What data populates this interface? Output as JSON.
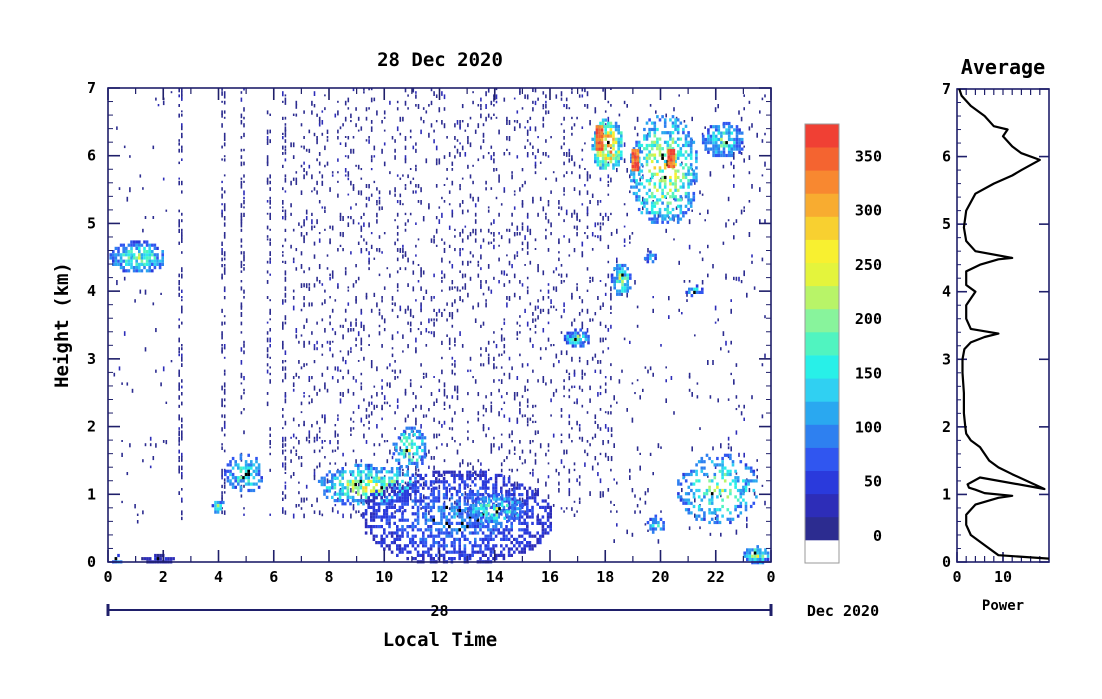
{
  "chart_data": [
    {
      "type": "heatmap",
      "title": "28 Dec 2020",
      "xlabel": "Local Time",
      "ylabel": "Height (km)",
      "xlim": [
        0,
        24
      ],
      "ylim": [
        0,
        7
      ],
      "x_ticks": [
        "0",
        "2",
        "4",
        "6",
        "8",
        "10",
        "12",
        "14",
        "16",
        "18",
        "20",
        "22",
        "0"
      ],
      "y_ticks": [
        "0",
        "1",
        "2",
        "3",
        "4",
        "5",
        "6",
        "7"
      ],
      "date_axis": {
        "day_label": "28",
        "month_label": "Dec 2020"
      },
      "colorbar": {
        "ticks": [
          "0",
          "50",
          "100",
          "150",
          "200",
          "250",
          "300",
          "350"
        ],
        "tick_values": [
          0,
          50,
          100,
          150,
          200,
          250,
          300,
          350
        ],
        "range": [
          -25,
          380
        ],
        "colors": [
          "#ffffff",
          "#2c2c90",
          "#2d2db8",
          "#2a3adc",
          "#3056f0",
          "#2e80f0",
          "#2aa8f0",
          "#30d0f2",
          "#28f0e8",
          "#50f4c0",
          "#88f49c",
          "#b8f468",
          "#e4f43c",
          "#f8f030",
          "#f8d030",
          "#f8ac30",
          "#f88830",
          "#f46430",
          "#f04034"
        ]
      },
      "layers": [
        {
          "kind": "noise",
          "t": [
            6.6,
            18.2
          ],
          "h": [
            0.7,
            7.0
          ],
          "density": 0.11
        },
        {
          "kind": "noise",
          "t": [
            0.2,
            2.3
          ],
          "h": [
            0.6,
            7.0
          ],
          "density": 0.015
        },
        {
          "kind": "noise",
          "t": [
            18.2,
            23.8
          ],
          "h": [
            0.3,
            7.0
          ],
          "density": 0.03
        },
        {
          "kind": "column",
          "t": [
            2.55,
            2.7
          ],
          "h": [
            0.6,
            7.0
          ],
          "density": 0.35
        },
        {
          "kind": "column",
          "t": [
            4.1,
            4.25
          ],
          "h": [
            0.7,
            7.0
          ],
          "density": 0.3
        },
        {
          "kind": "column",
          "t": [
            4.8,
            4.95
          ],
          "h": [
            0.7,
            7.0
          ],
          "density": 0.3
        },
        {
          "kind": "column",
          "t": [
            5.75,
            5.85
          ],
          "h": [
            0.7,
            7.0
          ],
          "density": 0.25
        },
        {
          "kind": "column",
          "t": [
            6.3,
            6.45
          ],
          "h": [
            0.7,
            7.0
          ],
          "density": 0.35
        },
        {
          "kind": "band",
          "t": [
            0.05,
            2.05
          ],
          "h": [
            4.3,
            4.75
          ],
          "v": 180,
          "density": 0.75
        },
        {
          "kind": "band",
          "t": [
            0.05,
            0.5
          ],
          "h": [
            0.0,
            0.12
          ],
          "v": 120,
          "density": 0.6
        },
        {
          "kind": "band",
          "t": [
            1.2,
            2.4
          ],
          "h": [
            0.0,
            0.12
          ],
          "v": 40,
          "density": 0.9
        },
        {
          "kind": "band",
          "t": [
            3.75,
            4.15
          ],
          "h": [
            0.75,
            0.95
          ],
          "v": 160,
          "density": 0.75
        },
        {
          "kind": "band",
          "t": [
            4.2,
            5.6
          ],
          "h": [
            1.05,
            1.6
          ],
          "v": 170,
          "density": 0.5
        },
        {
          "kind": "band",
          "t": [
            7.6,
            11.2
          ],
          "h": [
            0.85,
            1.45
          ],
          "v": 210,
          "density": 0.6
        },
        {
          "kind": "band",
          "t": [
            10.3,
            11.5
          ],
          "h": [
            1.4,
            2.0
          ],
          "v": 200,
          "density": 0.5
        },
        {
          "kind": "band",
          "t": [
            9.2,
            16.0
          ],
          "h": [
            0.0,
            1.35
          ],
          "v": 90,
          "density": 0.5
        },
        {
          "kind": "band",
          "t": [
            12.9,
            15.0
          ],
          "h": [
            0.6,
            1.0
          ],
          "v": 190,
          "density": 0.6
        },
        {
          "kind": "band",
          "t": [
            16.5,
            17.4
          ],
          "h": [
            3.2,
            3.45
          ],
          "v": 170,
          "density": 0.8
        },
        {
          "kind": "band",
          "t": [
            17.5,
            18.6
          ],
          "h": [
            5.8,
            6.55
          ],
          "v": 300,
          "density": 0.75
        },
        {
          "kind": "band",
          "t": [
            18.2,
            18.9
          ],
          "h": [
            3.95,
            4.45
          ],
          "v": 190,
          "density": 0.75
        },
        {
          "kind": "band",
          "t": [
            18.9,
            21.3
          ],
          "h": [
            5.0,
            6.6
          ],
          "v": 230,
          "density": 0.5
        },
        {
          "kind": "band",
          "t": [
            19.4,
            19.8
          ],
          "h": [
            4.45,
            4.6
          ],
          "v": 160,
          "density": 0.85
        },
        {
          "kind": "band",
          "t": [
            20.9,
            21.5
          ],
          "h": [
            3.95,
            4.1
          ],
          "v": 140,
          "density": 0.7
        },
        {
          "kind": "band",
          "t": [
            21.5,
            23.0
          ],
          "h": [
            6.0,
            6.5
          ],
          "v": 170,
          "density": 0.7
        },
        {
          "kind": "band",
          "t": [
            19.5,
            20.1
          ],
          "h": [
            0.45,
            0.7
          ],
          "v": 150,
          "density": 0.7
        },
        {
          "kind": "band",
          "t": [
            20.6,
            23.5
          ],
          "h": [
            0.6,
            1.6
          ],
          "v": 190,
          "density": 0.35
        },
        {
          "kind": "band",
          "t": [
            23.0,
            23.9
          ],
          "h": [
            0.0,
            0.25
          ],
          "v": 200,
          "density": 0.85
        },
        {
          "kind": "spot",
          "t": [
            18.95,
            19.15
          ],
          "h": [
            5.8,
            6.1
          ],
          "v": 360
        },
        {
          "kind": "spot",
          "t": [
            20.25,
            20.45
          ],
          "h": [
            5.85,
            6.1
          ],
          "v": 365
        },
        {
          "kind": "spot",
          "t": [
            17.65,
            17.9
          ],
          "h": [
            6.1,
            6.45
          ],
          "v": 360
        }
      ]
    },
    {
      "type": "line",
      "title": "Average",
      "xlabel": "Power",
      "ylabel": "",
      "xlim": [
        0,
        20
      ],
      "ylim": [
        0,
        7
      ],
      "x_ticks": [
        "0",
        "10"
      ],
      "y_ticks": [
        "0",
        "1",
        "2",
        "3",
        "4",
        "5",
        "6",
        "7"
      ],
      "series": [
        {
          "x": [
            20,
            9,
            6,
            3,
            2,
            2,
            4,
            9,
            12,
            6,
            4,
            2.6,
            2.3,
            5,
            19,
            12,
            9,
            7,
            6,
            5,
            3,
            2,
            1.8,
            1.5,
            1.5,
            1.2,
            1.2,
            1.6,
            3,
            6,
            9,
            3,
            2,
            2,
            3,
            4,
            2,
            2,
            5,
            9,
            12,
            4,
            2,
            1.5,
            2,
            4,
            8,
            12,
            14,
            18,
            14,
            12,
            10,
            11,
            8,
            6,
            3,
            1,
            0.5
          ],
          "y": [
            0.05,
            0.1,
            0.25,
            0.4,
            0.55,
            0.7,
            0.85,
            0.95,
            0.98,
            1.02,
            1.07,
            1.1,
            1.15,
            1.25,
            1.08,
            1.3,
            1.4,
            1.5,
            1.6,
            1.7,
            1.8,
            1.9,
            2.0,
            2.2,
            2.5,
            2.8,
            3.0,
            3.15,
            3.25,
            3.33,
            3.38,
            3.45,
            3.6,
            3.8,
            3.9,
            4.0,
            4.1,
            4.3,
            4.4,
            4.48,
            4.5,
            4.6,
            4.75,
            4.95,
            5.2,
            5.45,
            5.6,
            5.72,
            5.8,
            5.95,
            6.05,
            6.15,
            6.3,
            6.4,
            6.45,
            6.6,
            6.75,
            6.9,
            7.0
          ]
        }
      ]
    }
  ]
}
